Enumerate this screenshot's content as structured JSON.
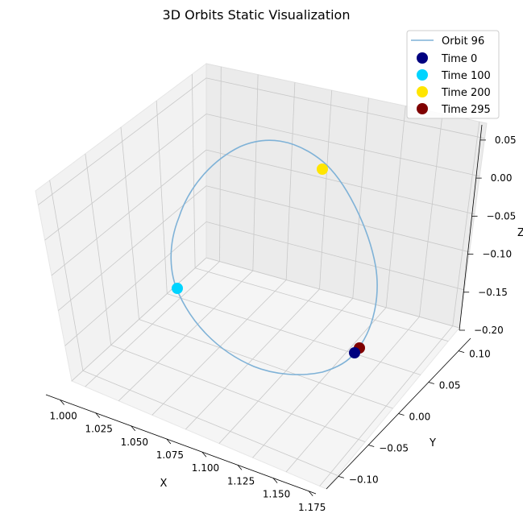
{
  "chart_data": {
    "type": "scatter",
    "projection": "3d",
    "title": "3D Orbits Static Visualization",
    "xlabel": "X",
    "ylabel": "Y",
    "zlabel": "Z",
    "xlim": [
      0.99,
      1.18
    ],
    "ylim": [
      -0.12,
      0.12
    ],
    "zlim": [
      -0.2,
      0.07
    ],
    "xticks": [
      "1.000",
      "1.025",
      "1.050",
      "1.075",
      "1.100",
      "1.125",
      "1.150",
      "1.175"
    ],
    "yticks": [
      "-0.10",
      "-0.05",
      "0.00",
      "0.05",
      "0.10"
    ],
    "zticks": [
      "-0.20",
      "-0.15",
      "-0.10",
      "-0.05",
      "0.00",
      "0.05"
    ],
    "grid": true,
    "legend_position": "top-right",
    "series": [
      {
        "name": "Orbit 96",
        "kind": "line",
        "color": "#7fb2d7"
      }
    ],
    "markers": [
      {
        "name": "Time 0",
        "color": "#00007f"
      },
      {
        "name": "Time 100",
        "color": "#00d4ff"
      },
      {
        "name": "Time 200",
        "color": "#ffe500"
      },
      {
        "name": "Time 295",
        "color": "#7f0000"
      }
    ]
  }
}
